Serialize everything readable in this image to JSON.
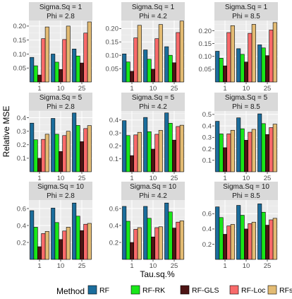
{
  "chart_data": {
    "type": "bar",
    "xlabel": "Tau.sq.%",
    "ylabel": "Relative MSE",
    "categories": [
      "1",
      "10",
      "25"
    ],
    "legend": {
      "title": "Method",
      "placement": "bottom",
      "entries": [
        "RF",
        "RF-RK",
        "RF-GLS",
        "RF-Loc",
        "RFsp"
      ]
    },
    "colors": [
      "#1b6d9c",
      "#19e619",
      "#4d1414",
      "#f86a6a",
      "#e3bb73"
    ],
    "grid": true,
    "panels": [
      {
        "row_label": "Sigma.Sq = 1",
        "col_label": "Phi = 2.8",
        "ylim": [
          0,
          0.22
        ],
        "yticks": [
          0.05,
          0.1,
          0.15,
          0.2
        ],
        "ytick_labels": [
          "0.05",
          "0.10",
          "0.15",
          "0.20"
        ],
        "series": [
          {
            "name": "RF",
            "values": [
              0.088,
              0.1,
              0.118
            ]
          },
          {
            "name": "RF-RK",
            "values": [
              0.058,
              0.071,
              0.093
            ]
          },
          {
            "name": "RF-GLS",
            "values": [
              0.025,
              0.045,
              0.068
            ]
          },
          {
            "name": "RF-Loc",
            "values": [
              0.155,
              0.152,
              0.175
            ]
          },
          {
            "name": "RFsp",
            "values": [
              0.197,
              0.2,
              0.215
            ]
          }
        ]
      },
      {
        "row_label": "Sigma.Sq = 1",
        "col_label": "Phi = 4.2",
        "ylim": [
          0,
          0.23
        ],
        "yticks": [
          0.05,
          0.1,
          0.15,
          0.2
        ],
        "ytick_labels": [
          "0.05",
          "0.10",
          "0.15",
          "0.20"
        ],
        "series": [
          {
            "name": "RF",
            "values": [
              0.105,
              0.12,
              0.132
            ]
          },
          {
            "name": "RF-RK",
            "values": [
              0.075,
              0.085,
              0.1
            ]
          },
          {
            "name": "RF-GLS",
            "values": [
              0.04,
              0.048,
              0.072
            ]
          },
          {
            "name": "RF-Loc",
            "values": [
              0.165,
              0.162,
              0.185
            ]
          },
          {
            "name": "RFsp",
            "values": [
              0.212,
              0.215,
              0.228
            ]
          }
        ]
      },
      {
        "row_label": "Sigma.Sq = 1",
        "col_label": "Phi = 8.5",
        "ylim": [
          0,
          0.24
        ],
        "yticks": [
          0.05,
          0.1,
          0.15,
          0.2
        ],
        "ytick_labels": [
          "0.05",
          "0.10",
          "0.15",
          "0.20"
        ],
        "series": [
          {
            "name": "RF",
            "values": [
              0.12,
              0.13,
              0.145
            ]
          },
          {
            "name": "RF-RK",
            "values": [
              0.093,
              0.108,
              0.133
            ]
          },
          {
            "name": "RF-GLS",
            "values": [
              0.063,
              0.078,
              0.103
            ]
          },
          {
            "name": "RF-Loc",
            "values": [
              0.193,
              0.19,
              0.203
            ]
          },
          {
            "name": "RFsp",
            "values": [
              0.22,
              0.225,
              0.232
            ]
          }
        ]
      },
      {
        "row_label": "Sigma.Sq = 5",
        "col_label": "Phi = 2.8",
        "ylim": [
          0,
          0.45
        ],
        "yticks": [
          0.1,
          0.2,
          0.3,
          0.4
        ],
        "ytick_labels": [
          "0.1",
          "0.2",
          "0.3",
          "0.4"
        ],
        "series": [
          {
            "name": "RF",
            "values": [
              0.36,
              0.395,
              0.435
            ]
          },
          {
            "name": "RF-RK",
            "values": [
              0.237,
              0.278,
              0.343
            ]
          },
          {
            "name": "RF-GLS",
            "values": [
              0.1,
              0.15,
              0.223
            ]
          },
          {
            "name": "RF-Loc",
            "values": [
              0.24,
              0.268,
              0.32
            ]
          },
          {
            "name": "RFsp",
            "values": [
              0.278,
              0.3,
              0.342
            ]
          }
        ]
      },
      {
        "row_label": "Sigma.Sq = 5",
        "col_label": "Phi = 4.2",
        "ylim": [
          0,
          0.47
        ],
        "yticks": [
          0.1,
          0.2,
          0.3,
          0.4
        ],
        "ytick_labels": [
          "0.1",
          "0.2",
          "0.3",
          "0.4"
        ],
        "series": [
          {
            "name": "RF",
            "values": [
              0.395,
              0.42,
              0.455
            ]
          },
          {
            "name": "RF-RK",
            "values": [
              0.28,
              0.31,
              0.375
            ]
          },
          {
            "name": "RF-GLS",
            "values": [
              0.125,
              0.175,
              0.245
            ]
          },
          {
            "name": "RF-Loc",
            "values": [
              0.285,
              0.29,
              0.35
            ]
          },
          {
            "name": "RFsp",
            "values": [
              0.305,
              0.32,
              0.36
            ]
          }
        ]
      },
      {
        "row_label": "Sigma.Sq = 5",
        "col_label": "Phi = 8.5",
        "ylim": [
          0,
          0.53
        ],
        "yticks": [
          0.1,
          0.2,
          0.3,
          0.4,
          0.5
        ],
        "ytick_labels": [
          "0.1",
          "0.2",
          "0.3",
          "0.4",
          "0.5"
        ],
        "series": [
          {
            "name": "RF",
            "values": [
              0.44,
              0.47,
              0.505
            ]
          },
          {
            "name": "RF-RK",
            "values": [
              0.33,
              0.375,
              0.42
            ]
          },
          {
            "name": "RF-GLS",
            "values": [
              0.21,
              0.275,
              0.325
            ]
          },
          {
            "name": "RF-Loc",
            "values": [
              0.33,
              0.345,
              0.385
            ]
          },
          {
            "name": "RFsp",
            "values": [
              0.362,
              0.37,
              0.415
            ]
          }
        ]
      },
      {
        "row_label": "Sigma.Sq = 10",
        "col_label": "Phi = 2.8",
        "ylim": [
          0,
          0.7
        ],
        "yticks": [
          0.2,
          0.4,
          0.6
        ],
        "ytick_labels": [
          "0.2",
          "0.4",
          "0.6"
        ],
        "series": [
          {
            "name": "RF",
            "values": [
              0.575,
              0.605,
              0.665
            ]
          },
          {
            "name": "RF-RK",
            "values": [
              0.38,
              0.435,
              0.51
            ]
          },
          {
            "name": "RF-GLS",
            "values": [
              0.15,
              0.235,
              0.34
            ]
          },
          {
            "name": "RF-Loc",
            "values": [
              0.305,
              0.335,
              0.415
            ]
          },
          {
            "name": "RFsp",
            "values": [
              0.33,
              0.38,
              0.425
            ]
          }
        ]
      },
      {
        "row_label": "Sigma.Sq = 10",
        "col_label": "Phi = 4.2",
        "ylim": [
          0,
          0.7
        ],
        "yticks": [
          0.2,
          0.4,
          0.6
        ],
        "ytick_labels": [
          "0.2",
          "0.4",
          "0.6"
        ],
        "series": [
          {
            "name": "RF",
            "values": [
              0.625,
              0.625,
              0.665
            ]
          },
          {
            "name": "RF-RK",
            "values": [
              0.45,
              0.485,
              0.56
            ]
          },
          {
            "name": "RF-GLS",
            "values": [
              0.2,
              0.265,
              0.37
            ]
          },
          {
            "name": "RF-Loc",
            "values": [
              0.355,
              0.375,
              0.44
            ]
          },
          {
            "name": "RFsp",
            "values": [
              0.375,
              0.385,
              0.455
            ]
          }
        ]
      },
      {
        "row_label": "Sigma.Sq = 10",
        "col_label": "Phi = 8.5",
        "ylim": [
          0,
          0.78
        ],
        "yticks": [
          0.2,
          0.4,
          0.6
        ],
        "ytick_labels": [
          "0.2",
          "0.4",
          "0.6"
        ],
        "series": [
          {
            "name": "RF",
            "values": [
              0.69,
              0.71,
              0.73
            ]
          },
          {
            "name": "RF-RK",
            "values": [
              0.55,
              0.58,
              0.62
            ]
          },
          {
            "name": "RF-GLS",
            "values": [
              0.33,
              0.4,
              0.45
            ]
          },
          {
            "name": "RF-Loc",
            "values": [
              0.44,
              0.47,
              0.52
            ]
          },
          {
            "name": "RFsp",
            "values": [
              0.46,
              0.49,
              0.54
            ]
          }
        ]
      }
    ]
  }
}
